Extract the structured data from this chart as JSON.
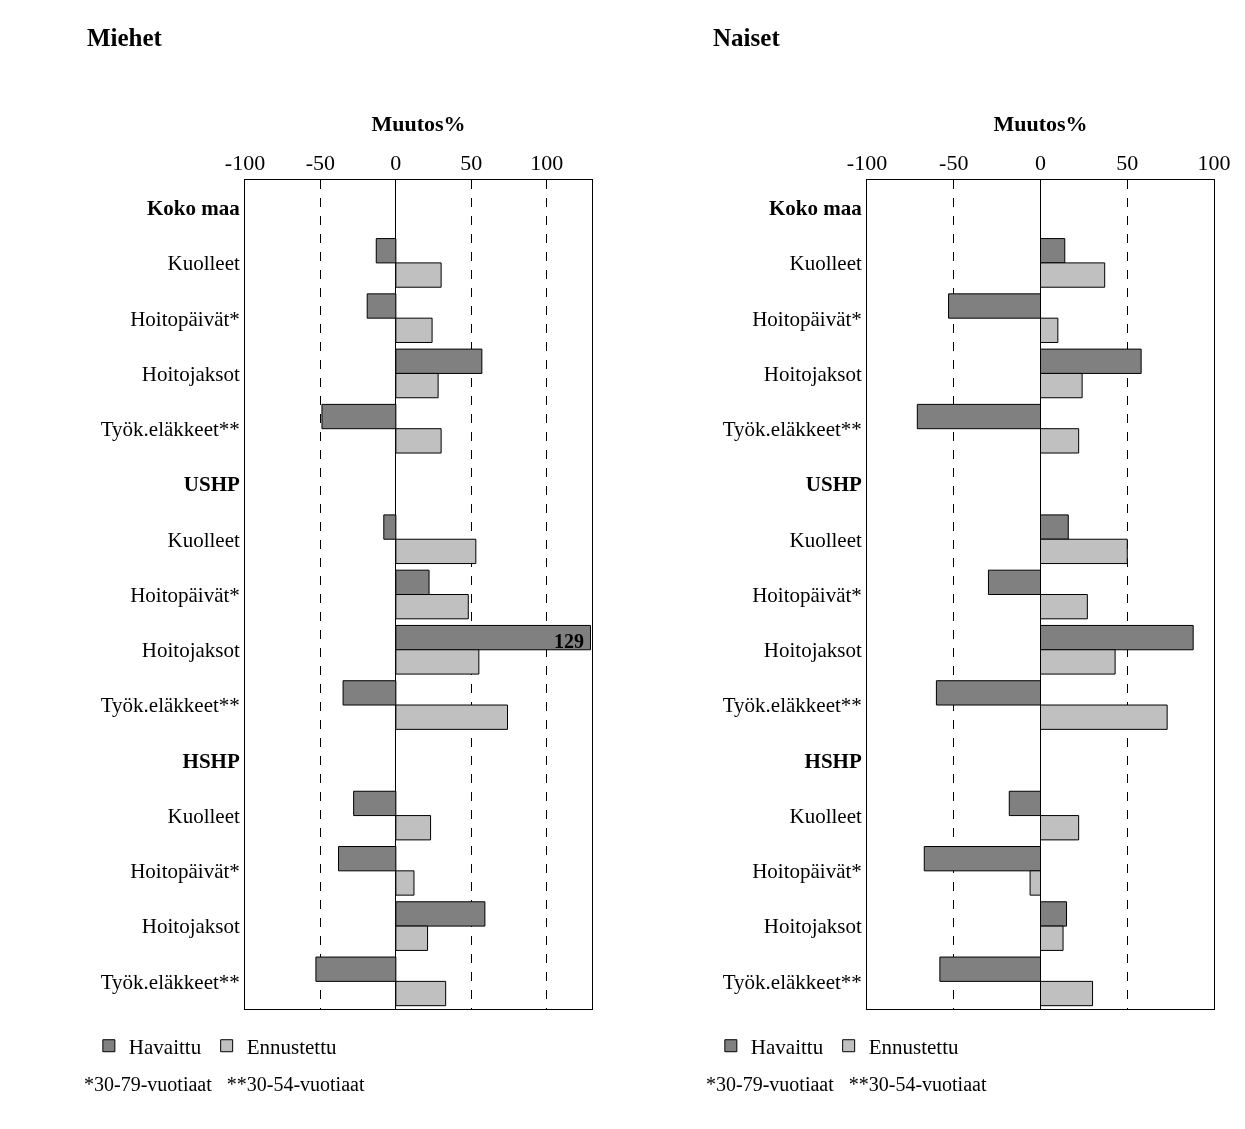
{
  "chart_data": [
    {
      "type": "bar",
      "orientation": "horizontal",
      "title": "Miehet",
      "xlabel": "Muutos%",
      "categories": [
        "Koko maa",
        "Kuolleet",
        "Hoitopäivät*",
        "Hoitojaksot",
        "Työk.eläkkeet**",
        "USHP",
        "Kuolleet",
        "Hoitopäivät*",
        "Hoitojaksot",
        "Työk.eläkkeet**",
        "HSHP",
        "Kuolleet",
        "Hoitopäivät*",
        "Hoitojaksot",
        "Työk.eläkkeet**"
      ],
      "series": [
        {
          "name": "Havaittu",
          "color": "#808080",
          "values": [
            null,
            -13,
            -19,
            57,
            -49,
            null,
            -8,
            22,
            129,
            -35,
            null,
            -28,
            -38,
            59,
            -53
          ],
          "value_labels": [
            null,
            null,
            null,
            null,
            null,
            null,
            null,
            null,
            "129",
            null,
            null,
            null,
            null,
            null,
            null
          ]
        },
        {
          "name": "Ennustettu",
          "color": "#c0c0c0",
          "values": [
            null,
            30,
            24,
            28,
            30,
            null,
            53,
            48,
            55,
            74,
            null,
            23,
            12,
            21,
            33
          ]
        }
      ],
      "xlim": [
        -100,
        130
      ],
      "xticks": [
        -100,
        -50,
        0,
        50,
        100
      ],
      "grid": "x",
      "line_style": "dashed",
      "legend": "bottom",
      "annotations": [
        "*30-79-vuotiaat   **30-54-vuotiaat"
      ]
    },
    {
      "type": "bar",
      "orientation": "horizontal",
      "title": "Naiset",
      "xlabel": "Muutos%",
      "categories": [
        "Koko maa",
        "Kuolleet",
        "Hoitopäivät*",
        "Hoitojaksot",
        "Työk.eläkkeet**",
        "USHP",
        "Kuolleet",
        "Hoitopäivät*",
        "Hoitojaksot",
        "Työk.eläkkeet**",
        "HSHP",
        "Kuolleet",
        "Hoitopäivät*",
        "Hoitojaksot",
        "Työk.eläkkeet**"
      ],
      "series": [
        {
          "name": "Havaittu",
          "color": "#808080",
          "values": [
            null,
            14,
            -53,
            58,
            -71,
            null,
            16,
            -30,
            88,
            -60,
            null,
            -18,
            -67,
            15,
            -58
          ]
        },
        {
          "name": "Ennustettu",
          "color": "#c0c0c0",
          "values": [
            null,
            37,
            10,
            24,
            22,
            null,
            50,
            27,
            43,
            73,
            null,
            22,
            -6,
            13,
            30
          ]
        }
      ],
      "xlim": [
        -100,
        100
      ],
      "xticks": [
        -100,
        -50,
        0,
        50,
        100
      ],
      "grid": "x",
      "line_style": "dashed",
      "legend": "bottom",
      "annotations": [
        "*30-79-vuotiaat   **30-54-vuotiaat"
      ]
    }
  ]
}
